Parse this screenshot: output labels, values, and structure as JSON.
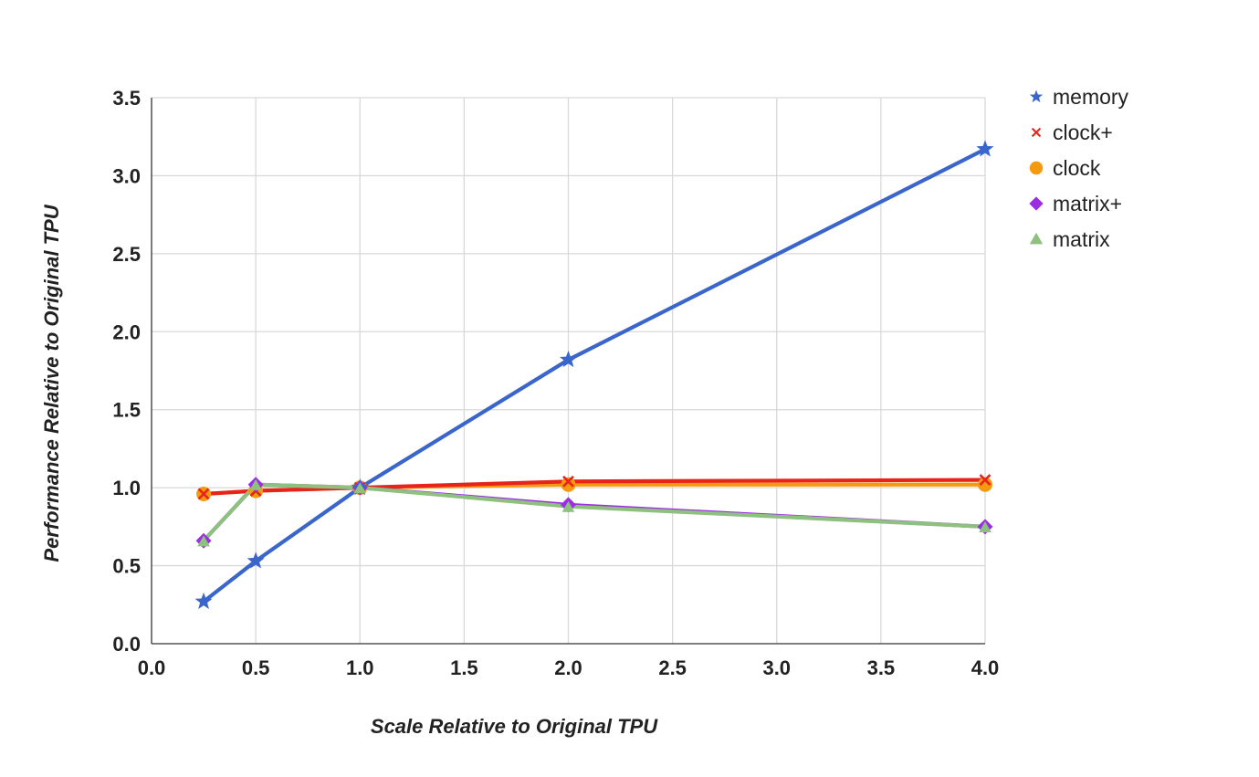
{
  "chart_data": {
    "type": "line",
    "xlabel": "Scale Relative to Original TPU",
    "ylabel": "Performance Relative to Original TPU",
    "xlim": [
      0,
      4
    ],
    "ylim": [
      0,
      3.5
    ],
    "x_ticks": [
      "0.0",
      "0.5",
      "1.0",
      "1.5",
      "2.0",
      "2.5",
      "3.0",
      "3.5",
      "4.0"
    ],
    "y_ticks": [
      "0.0",
      "0.5",
      "1.0",
      "1.5",
      "2.0",
      "2.5",
      "3.0",
      "3.5"
    ],
    "grid": true,
    "legend_position": "right",
    "x": [
      0.25,
      0.5,
      1.0,
      2.0,
      4.0
    ],
    "series": [
      {
        "name": "memory",
        "values": [
          0.27,
          0.53,
          1.0,
          1.82,
          3.17
        ],
        "color": "#3a66cc",
        "marker": "star"
      },
      {
        "name": "clock+",
        "values": [
          0.96,
          0.98,
          1.0,
          1.04,
          1.05
        ],
        "color": "#e8231a",
        "marker": "x"
      },
      {
        "name": "clock",
        "values": [
          0.96,
          0.98,
          1.0,
          1.02,
          1.02
        ],
        "color": "#f59a0f",
        "marker": "circle"
      },
      {
        "name": "matrix+",
        "values": [
          0.66,
          1.02,
          1.0,
          0.89,
          0.75
        ],
        "color": "#9b2ee3",
        "marker": "diamond"
      },
      {
        "name": "matrix",
        "values": [
          0.66,
          1.02,
          1.0,
          0.88,
          0.75
        ],
        "color": "#8fc17e",
        "marker": "triangle"
      }
    ]
  }
}
